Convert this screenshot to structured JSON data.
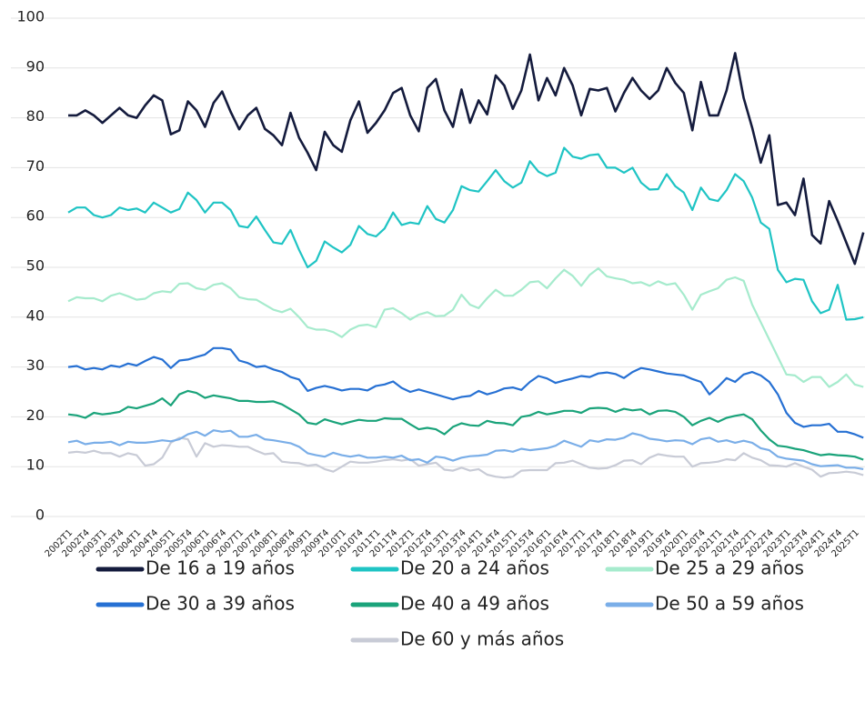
{
  "chart_data": {
    "type": "line",
    "categories": [
      "2002T1",
      null,
      "2002T4",
      null,
      "2003T1",
      null,
      "2003T4",
      null,
      "2004T1",
      null,
      "2004T4",
      null,
      "2005T1",
      null,
      "2005T4",
      null,
      "2006T1",
      null,
      "2006T4",
      null,
      "2007T1",
      null,
      "2007T4",
      null,
      "2008T1",
      null,
      "2008T4",
      null,
      "2009T1",
      null,
      "2009T4",
      null,
      "2010T1",
      null,
      "2010T4",
      null,
      "2011T1",
      null,
      "2011T4",
      null,
      "2012T1",
      null,
      "2012T4",
      null,
      "2013T1",
      null,
      "2013T4",
      null,
      "2014T1",
      null,
      "2014T4",
      null,
      "2015T1",
      null,
      "2015T4",
      null,
      "2016T1",
      null,
      "2016T4",
      null,
      "2017T1",
      null,
      "2017T4",
      null,
      "2018T1",
      null,
      "2018T4",
      null,
      "2019T1",
      null,
      "2019T4",
      null,
      "2020T1",
      null,
      "2020T4",
      null,
      "2021T1",
      null,
      "2021T4",
      null,
      "2022T1",
      null,
      "2022T4",
      null,
      "2023T1",
      null,
      "2023T4",
      null,
      "2024T1",
      null,
      "2024T4",
      null,
      "2025T1",
      null
    ],
    "ylim": [
      0,
      100
    ],
    "yticks": [
      0,
      10,
      20,
      30,
      40,
      50,
      60,
      70,
      80,
      90,
      100
    ],
    "grid": true,
    "legend": "bottom",
    "series": [
      {
        "name": "De 16 a 19 años",
        "color": "#141b3d",
        "values": [
          80.5,
          80.5,
          81.5,
          80.5,
          79,
          80.5,
          82,
          80.5,
          80,
          82.5,
          84.5,
          83.5,
          76.7,
          77.5,
          83.3,
          81.5,
          78.2,
          83,
          85.3,
          81.2,
          77.7,
          80.5,
          82,
          77.8,
          76.5,
          74.5,
          81,
          76,
          73,
          69.5,
          77.2,
          74.5,
          73.2,
          79.5,
          83.3,
          77,
          79,
          81.5,
          85,
          86,
          80.5,
          77.3,
          86,
          87.8,
          81.5,
          78.2,
          85.7,
          79,
          83.5,
          80.7,
          88.5,
          86.5,
          81.8,
          85.5,
          92.7,
          83.5,
          88,
          84.5,
          90,
          86.5,
          80.5,
          85.8,
          85.5,
          86,
          81.3,
          85,
          88,
          85.5,
          83.8,
          85.5,
          90,
          87,
          85,
          77.5,
          87.2,
          80.5,
          80.5,
          85.5,
          93,
          84,
          78,
          71,
          76.5,
          62.5,
          63,
          60.5,
          67.8,
          56.5,
          54.8,
          63.3,
          59.3,
          55,
          50.7,
          57
        ]
      },
      {
        "name": "De 20 a 24 años",
        "color": "#1fc4c4",
        "values": [
          61,
          62,
          62,
          60.5,
          60,
          60.5,
          62,
          61.5,
          61.8,
          61,
          63,
          62,
          61,
          61.7,
          65,
          63.5,
          61,
          63,
          63,
          61.5,
          58.3,
          58,
          60.2,
          57.5,
          55,
          54.7,
          57.5,
          53.5,
          50,
          51.3,
          55.2,
          54,
          53,
          54.5,
          58.3,
          56.7,
          56.2,
          57.8,
          61,
          58.5,
          59,
          58.7,
          62.3,
          59.7,
          59,
          61.5,
          66.3,
          65.5,
          65.2,
          67.3,
          69.5,
          67.3,
          66,
          67,
          71.3,
          69.2,
          68.3,
          69,
          74,
          72.2,
          71.8,
          72.5,
          72.7,
          70,
          70,
          69,
          70,
          67,
          65.6,
          65.7,
          68.7,
          66.3,
          65,
          61.5,
          66,
          63.7,
          63.3,
          65.5,
          68.7,
          67.3,
          64,
          59,
          57.7,
          49.5,
          47,
          47.7,
          47.5,
          43.2,
          40.8,
          41.5,
          46.5,
          39.5,
          39.6,
          40
        ]
      },
      {
        "name": "De 25 a 29 años",
        "color": "#a6ebcd",
        "values": [
          43.2,
          44,
          43.8,
          43.8,
          43.2,
          44.3,
          44.8,
          44.2,
          43.5,
          43.7,
          44.8,
          45.2,
          45,
          46.7,
          46.8,
          45.8,
          45.5,
          46.5,
          46.8,
          45.8,
          44,
          43.6,
          43.5,
          42.5,
          41.5,
          41,
          41.7,
          40,
          38,
          37.5,
          37.5,
          37,
          36,
          37.5,
          38.3,
          38.5,
          38,
          41.5,
          41.8,
          40.8,
          39.5,
          40.5,
          41,
          40.2,
          40.3,
          41.5,
          44.5,
          42.5,
          41.8,
          43.8,
          45.5,
          44.3,
          44.3,
          45.5,
          47,
          47.2,
          45.8,
          47.8,
          49.5,
          48.3,
          46.3,
          48.5,
          49.8,
          48.2,
          47.8,
          47.5,
          46.8,
          47,
          46.3,
          47.2,
          46.5,
          46.8,
          44.5,
          41.5,
          44.5,
          45.2,
          45.8,
          47.5,
          48,
          47.3,
          42.5,
          39,
          35.5,
          32,
          28.5,
          28.3,
          27,
          28,
          28,
          26,
          27,
          28.5,
          26.5,
          26
        ]
      },
      {
        "name": "De 30 a 39 años",
        "color": "#2670d3",
        "values": [
          30,
          30.2,
          29.5,
          29.8,
          29.5,
          30.3,
          30,
          30.7,
          30.3,
          31.2,
          32,
          31.5,
          29.8,
          31.3,
          31.5,
          32,
          32.5,
          33.8,
          33.8,
          33.5,
          31.3,
          30.8,
          30,
          30.2,
          29.5,
          29,
          28,
          27.5,
          25.2,
          25.8,
          26.2,
          25.8,
          25.3,
          25.6,
          25.6,
          25.3,
          26.2,
          26.5,
          27.1,
          25.8,
          25,
          25.5,
          25,
          24.5,
          24,
          23.5,
          24,
          24.2,
          25.2,
          24.5,
          25,
          25.7,
          25.9,
          25.4,
          27,
          28.2,
          27.7,
          26.8,
          27.3,
          27.7,
          28.2,
          28,
          28.7,
          28.9,
          28.6,
          27.8,
          29,
          29.8,
          29.5,
          29.1,
          28.7,
          28.5,
          28.3,
          27.6,
          27,
          24.5,
          26,
          27.8,
          27,
          28.5,
          29,
          28.3,
          27,
          24.5,
          20.8,
          18.8,
          18,
          18.3,
          18.3,
          18.6,
          17,
          17,
          16.5,
          15.8
        ]
      },
      {
        "name": "De 40 a 49 años",
        "color": "#1aa37a",
        "values": [
          20.5,
          20.3,
          19.8,
          20.8,
          20.5,
          20.7,
          21,
          22,
          21.7,
          22.2,
          22.7,
          23.7,
          22.3,
          24.5,
          25.2,
          24.8,
          23.8,
          24.3,
          24,
          23.7,
          23.2,
          23.2,
          23,
          23,
          23.1,
          22.5,
          21.5,
          20.5,
          18.8,
          18.5,
          19.5,
          19,
          18.5,
          19,
          19.4,
          19.2,
          19.2,
          19.7,
          19.6,
          19.6,
          18.5,
          17.5,
          17.8,
          17.5,
          16.5,
          18,
          18.7,
          18.3,
          18.2,
          19.2,
          18.8,
          18.7,
          18.3,
          20,
          20.3,
          21,
          20.5,
          20.8,
          21.2,
          21.2,
          20.8,
          21.7,
          21.8,
          21.7,
          21,
          21.6,
          21.3,
          21.5,
          20.5,
          21.2,
          21.3,
          21,
          20,
          18.3,
          19.2,
          19.8,
          19,
          19.8,
          20.2,
          20.5,
          19.5,
          17.3,
          15.5,
          14.2,
          14,
          13.6,
          13.3,
          12.8,
          12.3,
          12.5,
          12.3,
          12.2,
          12,
          11.4
        ]
      },
      {
        "name": "De 50 a 59 años",
        "color": "#7aaee8",
        "values": [
          14.9,
          15.2,
          14.5,
          14.8,
          14.8,
          15,
          14.3,
          15,
          14.8,
          14.8,
          15,
          15.3,
          15.1,
          15.5,
          16.5,
          17,
          16.2,
          17.3,
          17,
          17.2,
          16,
          16,
          16.4,
          15.5,
          15.3,
          15,
          14.7,
          14,
          12.7,
          12.3,
          12,
          12.8,
          12.3,
          12,
          12.3,
          11.8,
          11.8,
          12,
          11.8,
          12.2,
          11.3,
          11.5,
          10.8,
          12,
          11.8,
          11.2,
          11.8,
          12.1,
          12.2,
          12.4,
          13.2,
          13.3,
          13,
          13.6,
          13.3,
          13.5,
          13.7,
          14.2,
          15.2,
          14.6,
          14,
          15.3,
          15,
          15.5,
          15.4,
          15.8,
          16.7,
          16.3,
          15.6,
          15.4,
          15.1,
          15.3,
          15.2,
          14.5,
          15.5,
          15.8,
          15,
          15.3,
          14.8,
          15.2,
          14.8,
          13.7,
          13.3,
          12,
          11.6,
          11.4,
          11.2,
          10.5,
          10.1,
          10.2,
          10.3,
          9.8,
          9.8,
          9.5
        ]
      },
      {
        "name": "De 60 y más años",
        "color": "#c8cbd6",
        "values": [
          12.8,
          13,
          12.8,
          13.2,
          12.7,
          12.7,
          12,
          12.7,
          12.3,
          10.2,
          10.5,
          11.8,
          14.8,
          15.8,
          15.5,
          12,
          14.7,
          14,
          14.3,
          14.2,
          14,
          14,
          13.2,
          12.5,
          12.7,
          11,
          10.8,
          10.7,
          10.2,
          10.4,
          9.5,
          9,
          10,
          11,
          10.8,
          10.8,
          11,
          11.3,
          11.5,
          11.2,
          11.5,
          10.2,
          10.5,
          10.8,
          9.4,
          9.2,
          9.8,
          9.2,
          9.5,
          8.4,
          8,
          7.8,
          8,
          9.2,
          9.3,
          9.3,
          9.3,
          10.7,
          10.8,
          11.2,
          10.5,
          9.8,
          9.6,
          9.7,
          10.3,
          11.2,
          11.3,
          10.5,
          11.8,
          12.5,
          12.2,
          12,
          12,
          10,
          10.7,
          10.8,
          11,
          11.5,
          11.3,
          12.7,
          11.8,
          11.3,
          10.3,
          10.2,
          10,
          10.7,
          10,
          9.4,
          8,
          8.7,
          8.8,
          9,
          8.8,
          8.3
        ]
      }
    ]
  }
}
